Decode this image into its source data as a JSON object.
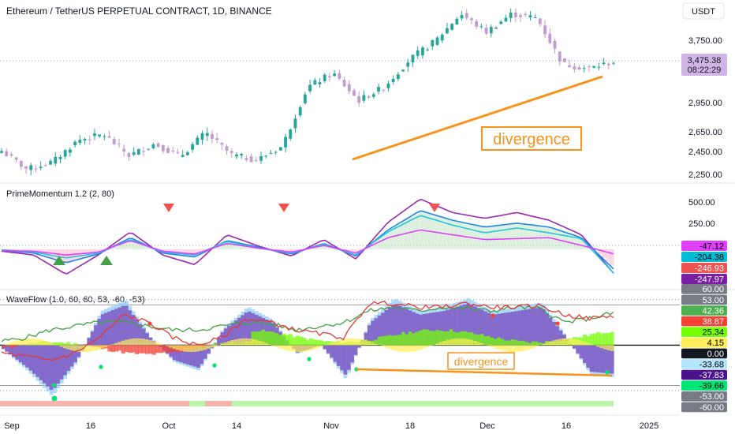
{
  "main_chart": {
    "title": "Ethereum / TetherUS PERPETUAL CONTRACT, 1D, BINANCE",
    "currency_label": "USDT",
    "price_ticks": [
      "3,750.00",
      "2,950.00",
      "2,650.00",
      "2,450.00",
      "2,250.00"
    ],
    "last_price": "3,475.38",
    "countdown": "08:22:29",
    "annotation": "divergence"
  },
  "prime_momentum": {
    "title": "PrimeMomentum 1.2 (2, 80)",
    "ticks": [
      "500.00",
      "250.00"
    ],
    "value_labels": [
      {
        "text": "-47.12",
        "color": "#e040fb",
        "text_color": "#000000"
      },
      {
        "text": "-204.38",
        "color": "#00bcd4",
        "text_color": "#000000"
      },
      {
        "text": "-246.93",
        "color": "#ef5350",
        "text_color": "#ffffff"
      },
      {
        "text": "-247.97",
        "color": "#7b1fa2",
        "text_color": "#ffffff"
      }
    ]
  },
  "wave_flow": {
    "title": "WaveFlow (1.0, 60, 60, 53, -60, -53)",
    "annotation": "divergence",
    "value_labels": [
      {
        "text": "60.00",
        "color": "#787b86",
        "text_color": "#ffffff"
      },
      {
        "text": "53.00",
        "color": "#787b86",
        "text_color": "#ffffff"
      },
      {
        "text": "42.36",
        "color": "#4caf50",
        "text_color": "#ffffff"
      },
      {
        "text": "38.87",
        "color": "#f44336",
        "text_color": "#ffffff"
      },
      {
        "text": "25.34",
        "color": "#76ff03",
        "text_color": "#000000"
      },
      {
        "text": "4.15",
        "color": "#ffee58",
        "text_color": "#000000"
      },
      {
        "text": "0.00",
        "color": "#131722",
        "text_color": "#ffffff"
      },
      {
        "text": "-33.68",
        "color": "#b3e5fc",
        "text_color": "#000000"
      },
      {
        "text": "-37.83",
        "color": "#4a148c",
        "text_color": "#ffffff"
      },
      {
        "text": "-39.66",
        "color": "#00e676",
        "text_color": "#000000"
      },
      {
        "text": "-53.00",
        "color": "#787b86",
        "text_color": "#ffffff"
      },
      {
        "text": "-60.00",
        "color": "#787b86",
        "text_color": "#ffffff"
      }
    ]
  },
  "time_axis": [
    "Sep",
    "16",
    "Oct",
    "14",
    "Nov",
    "18",
    "Dec",
    "16",
    "2025"
  ],
  "chart_data": [
    {
      "type": "candlestick",
      "title": "Ethereum / TetherUS PERPETUAL CONTRACT, 1D, BINANCE",
      "ylabel": "USDT",
      "ylim": [
        2150,
        4150
      ],
      "x": [
        "Sep",
        "16",
        "Oct",
        "14",
        "Nov",
        "18",
        "Dec",
        "16"
      ],
      "anchor_closes": [
        2500,
        2300,
        2380,
        2620,
        2680,
        2450,
        2580,
        2440,
        2700,
        2460,
        2400,
        2550,
        3200,
        3350,
        3050,
        3200,
        3500,
        3700,
        4000,
        3800,
        4000,
        3950,
        3450,
        3400,
        3475
      ],
      "last_price": 3475.38,
      "divergence_line": {
        "from": [
          "Nov",
          2400
        ],
        "to": [
          "16",
          3420
        ]
      }
    },
    {
      "type": "line",
      "title": "PrimeMomentum 1.2 (2, 80)",
      "ylim": [
        -320,
        620
      ],
      "series_colors": [
        "#9c27b0",
        "#1e88e5",
        "#26c6da",
        "#e040fb"
      ],
      "series": [
        {
          "values": [
            -20,
            -60,
            -260,
            -60,
            180,
            -60,
            -160,
            150,
            30,
            -70,
            100,
            -100,
            280,
            520,
            380,
            320,
            380,
            300,
            150,
            -247.97
          ]
        },
        {
          "values": [
            -10,
            -40,
            -140,
            -50,
            120,
            -40,
            -80,
            90,
            20,
            -50,
            60,
            -70,
            200,
            400,
            300,
            230,
            270,
            230,
            120,
            -204.38
          ]
        },
        {
          "values": [
            -5,
            -30,
            -90,
            -40,
            100,
            -30,
            -60,
            80,
            10,
            -40,
            50,
            -60,
            180,
            350,
            250,
            170,
            220,
            170,
            110,
            -246.93
          ]
        },
        {
          "values": [
            -15,
            -20,
            -60,
            -30,
            90,
            -20,
            -50,
            60,
            10,
            -30,
            40,
            -40,
            120,
            200,
            150,
            100,
            110,
            120,
            40,
            -47.12
          ]
        }
      ],
      "markers": [
        {
          "type": "bearish",
          "color": "#ef5350"
        },
        {
          "type": "bearish",
          "color": "#ef5350"
        },
        {
          "type": "bearish",
          "color": "#ef5350"
        },
        {
          "type": "bullish",
          "color": "#43a047"
        },
        {
          "type": "bullish",
          "color": "#43a047"
        }
      ]
    },
    {
      "type": "area",
      "title": "WaveFlow (1.0, 60, 60, 53, -60, -53)",
      "ylim": [
        -65,
        70
      ],
      "levels": [
        60,
        53,
        0,
        -53,
        -60
      ],
      "series": [
        {
          "values": [
            -5,
            -30,
            -60,
            -20,
            40,
            53,
            10,
            -20,
            -30,
            20,
            45,
            30,
            -10,
            0,
            -40,
            30,
            55,
            40,
            45,
            55,
            40,
            45,
            50,
            10,
            -35,
            -37.83
          ]
        },
        {
          "values": [
            5,
            10,
            20,
            25,
            30,
            30,
            25,
            20,
            20,
            25,
            30,
            28,
            20,
            25,
            30,
            45,
            50,
            45,
            50,
            48,
            45,
            50,
            48,
            30,
            35,
            42.36
          ]
        },
        {
          "values": [
            -10,
            -15,
            -20,
            -10,
            10,
            40,
            30,
            10,
            0,
            10,
            35,
            30,
            20,
            15,
            10,
            55,
            55,
            50,
            50,
            55,
            50,
            50,
            52,
            40,
            35,
            38.87
          ]
        }
      ]
    }
  ]
}
